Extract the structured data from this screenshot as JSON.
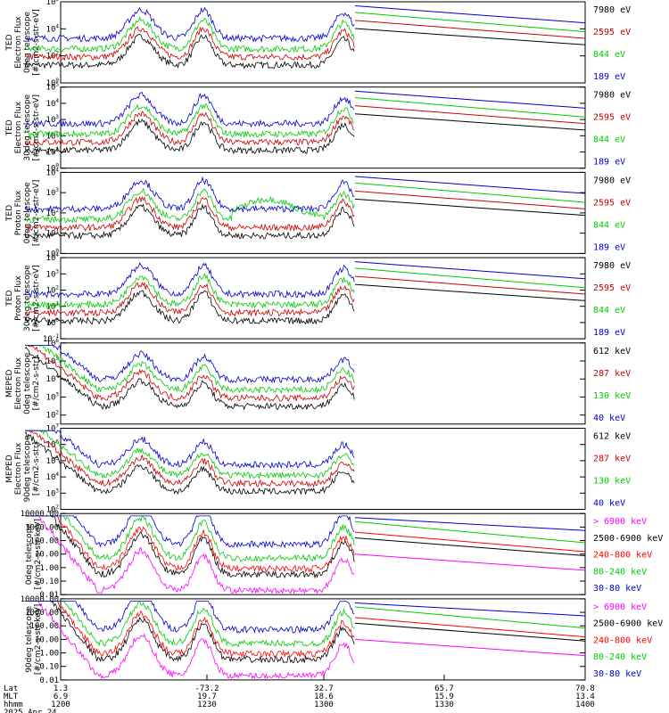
{
  "chart_data": [
    {
      "type": "line",
      "ylabel_lines": [
        "TED",
        "Electron Flux",
        "0deg telescope",
        "[#/cm2-s-str-eV]"
      ],
      "ytick_labels": [
        "10^0",
        "10^2",
        "10^4",
        "10^6"
      ],
      "ylim_log10": [
        0,
        6
      ],
      "series": [
        {
          "name": "7980 eV",
          "color": "#000000"
        },
        {
          "name": "2595 eV",
          "color": "#cc0000"
        },
        {
          "name": "844 eV",
          "color": "#00cc00"
        },
        {
          "name": "189 eV",
          "color": "#0000cc"
        }
      ]
    },
    {
      "type": "line",
      "ylabel_lines": [
        "TED",
        "Electron Flux",
        "30deg telescope",
        "[#/cm2-s-str-eV]"
      ],
      "ytick_labels": [
        "10^0",
        "10^1",
        "10^2",
        "10^3",
        "10^4",
        "10^5"
      ],
      "ylim_log10": [
        0,
        5
      ],
      "series": [
        {
          "name": "7980 eV",
          "color": "#000000"
        },
        {
          "name": "2595 eV",
          "color": "#cc0000"
        },
        {
          "name": "844 eV",
          "color": "#00cc00"
        },
        {
          "name": "189 eV",
          "color": "#0000cc"
        }
      ]
    },
    {
      "type": "line",
      "ylabel_lines": [
        "TED",
        "Proton Flux",
        "0deg telescope",
        "[#/cm2-s-str-eV]"
      ],
      "ytick_labels": [
        "10^0",
        "10^1",
        "10^2",
        "10^3",
        "10^4"
      ],
      "ylim_log10": [
        0,
        4
      ],
      "series": [
        {
          "name": "7980 eV",
          "color": "#000000"
        },
        {
          "name": "2595 eV",
          "color": "#cc0000"
        },
        {
          "name": "844 eV",
          "color": "#00cc00"
        },
        {
          "name": "189 eV",
          "color": "#0000cc"
        }
      ]
    },
    {
      "type": "line",
      "ylabel_lines": [
        "TED",
        "Proton Flux",
        "30deg telescope",
        "[#/cm2-s-str-eV]"
      ],
      "ytick_labels": [
        "10^-1",
        "10^0",
        "10^1",
        "10^2",
        "10^3",
        "10^4"
      ],
      "ylim_log10": [
        -1,
        4
      ],
      "series": [
        {
          "name": "7980 eV",
          "color": "#000000"
        },
        {
          "name": "2595 eV",
          "color": "#cc0000"
        },
        {
          "name": "844 eV",
          "color": "#00cc00"
        },
        {
          "name": "189 eV",
          "color": "#0000cc"
        }
      ]
    },
    {
      "type": "line",
      "ylabel_lines": [
        "MEPED",
        "Electron Flux",
        "0deg telescope",
        "[#/cm2-s-str]"
      ],
      "ytick_labels": [
        "10^2",
        "10^3",
        "10^4",
        "10^5",
        "10^6"
      ],
      "ylim_log10": [
        1.5,
        6
      ],
      "series": [
        {
          "name": "612 keV",
          "color": "#000000"
        },
        {
          "name": "287 keV",
          "color": "#cc0000"
        },
        {
          "name": "130 keV",
          "color": "#00cc00"
        },
        {
          "name": "40 keV",
          "color": "#0000cc"
        }
      ]
    },
    {
      "type": "line",
      "ylabel_lines": [
        "MEPED",
        "Electron Flux",
        "90deg telescope",
        "[#/cm2-s-str]"
      ],
      "ytick_labels": [
        "10^2",
        "10^3",
        "10^4",
        "10^5",
        "10^6",
        "10^7"
      ],
      "ylim_log10": [
        2,
        7
      ],
      "series": [
        {
          "name": "612 keV",
          "color": "#000000"
        },
        {
          "name": "287 keV",
          "color": "#cc0000"
        },
        {
          "name": "130 keV",
          "color": "#00cc00"
        },
        {
          "name": "40 keV",
          "color": "#0000cc"
        }
      ]
    },
    {
      "type": "line",
      "ylabel_lines": [
        "0deg telescope",
        "[#/cm2-s-str-keV]"
      ],
      "ytick_labels": [
        "0.01",
        "0.10",
        "1.00",
        "10.00",
        "100.00",
        "1000.00",
        "10000.00"
      ],
      "ylim_log10": [
        -2,
        4
      ],
      "series": [
        {
          "name": "> 6900 keV",
          "color": "#ff00ff"
        },
        {
          "name": "2500-6900 keV",
          "color": "#000000"
        },
        {
          "name": "240-800 keV",
          "color": "#ff0000"
        },
        {
          "name": "80-240 keV",
          "color": "#00cc00"
        },
        {
          "name": "30-80 keV",
          "color": "#0000cc"
        }
      ]
    },
    {
      "type": "line",
      "ylabel_lines": [
        "90deg telescope",
        "[#/cm2-s-str-keV]"
      ],
      "ytick_labels": [
        "0.01",
        "0.10",
        "1.00",
        "10.00",
        "100.00",
        "1000.00",
        "10000.00"
      ],
      "ylim_log10": [
        -2,
        4
      ],
      "series": [
        {
          "name": "> 6900 keV",
          "color": "#ff00ff"
        },
        {
          "name": "2500-6900 keV",
          "color": "#000000"
        },
        {
          "name": "240-800 keV",
          "color": "#ff0000"
        },
        {
          "name": "80-240 keV",
          "color": "#00cc00"
        },
        {
          "name": "30-80 keV",
          "color": "#0000cc"
        }
      ]
    }
  ],
  "x_axis": {
    "row_labels": [
      "Lat",
      "MLT",
      "hhmm"
    ],
    "ticks": [
      {
        "lat": "1.3",
        "mlt": "6.9",
        "hhmm": "1200"
      },
      {
        "lat": "-73.2",
        "mlt": "19.7",
        "hhmm": "1230"
      },
      {
        "lat": "32.7",
        "mlt": "18.6",
        "hhmm": "1300"
      },
      {
        "lat": "65.7",
        "mlt": "15.9",
        "hhmm": "1330"
      },
      {
        "lat": "70.8",
        "mlt": "13.4",
        "hhmm": "1400"
      }
    ],
    "date": "2025 Apr 24"
  }
}
